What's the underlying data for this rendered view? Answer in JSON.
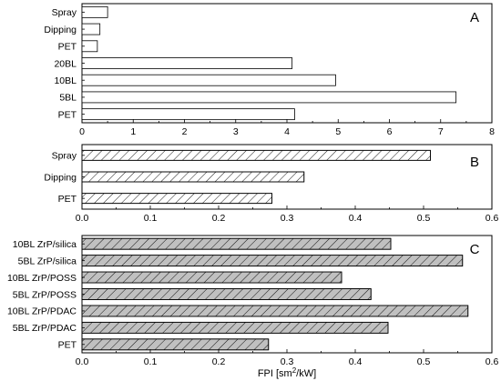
{
  "chart_data": [
    {
      "type": "bar",
      "orientation": "horizontal",
      "panel_label": "A",
      "categories": [
        "Spray",
        "Dipping",
        "PET",
        "20BL",
        "10BL",
        "5BL",
        "PET"
      ],
      "values": [
        0.5,
        0.35,
        0.3,
        4.1,
        4.95,
        7.3,
        4.15
      ],
      "xlim": [
        0,
        8
      ],
      "xticks": [
        "0",
        "1",
        "2",
        "3",
        "4",
        "5",
        "6",
        "7",
        "8"
      ],
      "bar_fill": "#ffffff",
      "pattern": "none"
    },
    {
      "type": "bar",
      "orientation": "horizontal",
      "panel_label": "B",
      "categories": [
        "Spray",
        "Dipping",
        "PET"
      ],
      "values": [
        0.51,
        0.325,
        0.278
      ],
      "xlim": [
        0,
        0.6
      ],
      "xticks": [
        "0.0",
        "0.1",
        "0.2",
        "0.3",
        "0.4",
        "0.5",
        "0.6"
      ],
      "bar_fill": "#ffffff",
      "pattern": "hatched"
    },
    {
      "type": "bar",
      "orientation": "horizontal",
      "panel_label": "C",
      "categories": [
        "10BL ZrP/silica",
        "5BL ZrP/silica",
        "10BL ZrP/POSS",
        "5BL ZrP/POSS",
        "10BL ZrP/PDAC",
        "5BL ZrP/PDAC",
        "PET"
      ],
      "values": [
        0.452,
        0.557,
        0.38,
        0.423,
        0.565,
        0.448,
        0.273
      ],
      "xlim": [
        0,
        0.6
      ],
      "xticks": [
        "0.0",
        "0.1",
        "0.2",
        "0.3",
        "0.4",
        "0.5",
        "0.6"
      ],
      "bar_fill": "#c0c0c0",
      "pattern": "hatched",
      "xlabel": "FPI [sm2/kW]",
      "xlabel_parts": [
        "FPI [sm",
        "2",
        "/kW]"
      ]
    }
  ]
}
